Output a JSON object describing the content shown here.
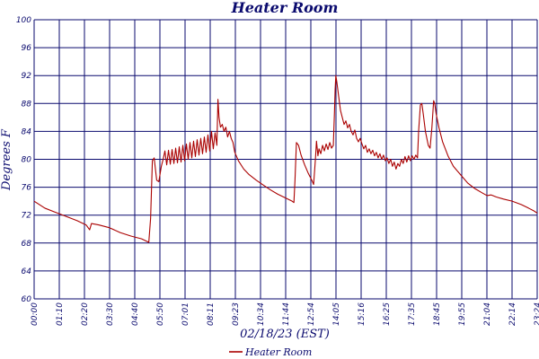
{
  "chart_data": {
    "type": "line",
    "title": "Heater Room",
    "xlabel": "02/18/23 (EST)",
    "ylabel": "Degrees F",
    "ylim": [
      60,
      100
    ],
    "yticks": [
      60,
      64,
      68,
      72,
      76,
      80,
      84,
      88,
      92,
      96,
      100
    ],
    "xlim_minutes": [
      0,
      1404
    ],
    "xticks": [
      "00:00",
      "01:10",
      "02:20",
      "03:30",
      "04:40",
      "05:50",
      "07:01",
      "08:11",
      "09:23",
      "10:34",
      "11:44",
      "12:54",
      "14:05",
      "15:16",
      "16:25",
      "17:35",
      "18:45",
      "19:55",
      "21:04",
      "22:14",
      "23:24"
    ],
    "grid": true,
    "legend_position": "bottom-center",
    "colors": {
      "series": "#aa0000",
      "grid": "#0a0a6e",
      "text": "#0a0a6e"
    },
    "series": [
      {
        "name": "Heater Room",
        "points": [
          [
            "00:00",
            74.0
          ],
          [
            "00:30",
            73.0
          ],
          [
            "01:00",
            72.4
          ],
          [
            "01:30",
            71.8
          ],
          [
            "02:00",
            71.2
          ],
          [
            "02:25",
            70.6
          ],
          [
            "02:35",
            69.9
          ],
          [
            "02:40",
            70.8
          ],
          [
            "03:00",
            70.6
          ],
          [
            "03:30",
            70.2
          ],
          [
            "04:00",
            69.5
          ],
          [
            "04:30",
            69.0
          ],
          [
            "05:00",
            68.6
          ],
          [
            "05:20",
            68.1
          ],
          [
            "05:25",
            71.5
          ],
          [
            "05:30",
            79.8
          ],
          [
            "05:35",
            80.2
          ],
          [
            "05:42",
            77.0
          ],
          [
            "05:48",
            76.8
          ],
          [
            "05:55",
            79.0
          ],
          [
            "06:00",
            80.0
          ],
          [
            "06:05",
            81.2
          ],
          [
            "06:10",
            79.2
          ],
          [
            "06:15",
            81.3
          ],
          [
            "06:20",
            79.3
          ],
          [
            "06:25",
            81.4
          ],
          [
            "06:30",
            79.4
          ],
          [
            "06:35",
            81.6
          ],
          [
            "06:40",
            79.5
          ],
          [
            "06:45",
            81.8
          ],
          [
            "06:50",
            79.6
          ],
          [
            "06:55",
            82.0
          ],
          [
            "07:00",
            79.8
          ],
          [
            "07:05",
            82.2
          ],
          [
            "07:10",
            80.0
          ],
          [
            "07:15",
            82.4
          ],
          [
            "07:20",
            80.2
          ],
          [
            "07:25",
            82.6
          ],
          [
            "07:30",
            80.4
          ],
          [
            "07:35",
            82.8
          ],
          [
            "07:40",
            80.6
          ],
          [
            "07:45",
            83.0
          ],
          [
            "07:50",
            80.8
          ],
          [
            "07:55",
            83.2
          ],
          [
            "08:00",
            81.0
          ],
          [
            "08:05",
            83.5
          ],
          [
            "08:10",
            81.2
          ],
          [
            "08:15",
            84.0
          ],
          [
            "08:20",
            81.5
          ],
          [
            "08:25",
            83.8
          ],
          [
            "08:30",
            82.0
          ],
          [
            "08:33",
            88.6
          ],
          [
            "08:36",
            86.0
          ],
          [
            "08:40",
            84.6
          ],
          [
            "08:45",
            85.0
          ],
          [
            "08:50",
            84.0
          ],
          [
            "08:55",
            84.6
          ],
          [
            "09:00",
            83.2
          ],
          [
            "09:05",
            84.0
          ],
          [
            "09:10",
            83.0
          ],
          [
            "09:15",
            82.4
          ],
          [
            "09:20",
            81.0
          ],
          [
            "09:30",
            79.8
          ],
          [
            "09:45",
            78.6
          ],
          [
            "10:00",
            77.8
          ],
          [
            "10:20",
            77.0
          ],
          [
            "10:40",
            76.3
          ],
          [
            "11:00",
            75.6
          ],
          [
            "11:20",
            75.0
          ],
          [
            "11:40",
            74.5
          ],
          [
            "12:00",
            74.0
          ],
          [
            "12:05",
            73.8
          ],
          [
            "12:08",
            77.0
          ],
          [
            "12:12",
            82.4
          ],
          [
            "12:18",
            82.0
          ],
          [
            "12:25",
            80.6
          ],
          [
            "12:35",
            79.2
          ],
          [
            "12:45",
            78.0
          ],
          [
            "12:55",
            77.0
          ],
          [
            "13:00",
            76.4
          ],
          [
            "13:05",
            80.0
          ],
          [
            "13:08",
            82.6
          ],
          [
            "13:12",
            80.5
          ],
          [
            "13:15",
            81.5
          ],
          [
            "13:20",
            80.8
          ],
          [
            "13:25",
            82.0
          ],
          [
            "13:30",
            81.2
          ],
          [
            "13:35",
            82.2
          ],
          [
            "13:40",
            81.4
          ],
          [
            "13:45",
            82.4
          ],
          [
            "13:50",
            81.6
          ],
          [
            "13:55",
            82.0
          ],
          [
            "13:58",
            86.5
          ],
          [
            "14:00",
            90.0
          ],
          [
            "14:02",
            92.0
          ],
          [
            "14:05",
            91.0
          ],
          [
            "14:10",
            89.0
          ],
          [
            "14:15",
            87.0
          ],
          [
            "14:20",
            86.0
          ],
          [
            "14:25",
            85.0
          ],
          [
            "14:30",
            85.5
          ],
          [
            "14:35",
            84.5
          ],
          [
            "14:40",
            85.0
          ],
          [
            "14:45",
            84.0
          ],
          [
            "14:50",
            83.5
          ],
          [
            "14:55",
            84.2
          ],
          [
            "15:00",
            83.0
          ],
          [
            "15:05",
            82.5
          ],
          [
            "15:10",
            83.0
          ],
          [
            "15:15",
            82.2
          ],
          [
            "15:20",
            81.5
          ],
          [
            "15:25",
            82.0
          ],
          [
            "15:30",
            81.0
          ],
          [
            "15:35",
            81.5
          ],
          [
            "15:40",
            80.8
          ],
          [
            "15:45",
            81.3
          ],
          [
            "15:50",
            80.5
          ],
          [
            "15:55",
            81.0
          ],
          [
            "16:00",
            80.2
          ],
          [
            "16:05",
            80.8
          ],
          [
            "16:10",
            80.0
          ],
          [
            "16:15",
            80.6
          ],
          [
            "16:20",
            79.8
          ],
          [
            "16:25",
            80.2
          ],
          [
            "16:30",
            79.4
          ],
          [
            "16:35",
            80.0
          ],
          [
            "16:40",
            79.0
          ],
          [
            "16:45",
            79.6
          ],
          [
            "16:50",
            78.6
          ],
          [
            "16:55",
            79.4
          ],
          [
            "17:00",
            79.0
          ],
          [
            "17:05",
            80.0
          ],
          [
            "17:10",
            79.4
          ],
          [
            "17:15",
            80.4
          ],
          [
            "17:20",
            79.6
          ],
          [
            "17:25",
            80.5
          ],
          [
            "17:30",
            79.8
          ],
          [
            "17:35",
            80.5
          ],
          [
            "17:40",
            80.0
          ],
          [
            "17:45",
            80.6
          ],
          [
            "17:50",
            80.2
          ],
          [
            "17:53",
            84.0
          ],
          [
            "17:58",
            87.8
          ],
          [
            "18:02",
            88.0
          ],
          [
            "18:06",
            86.5
          ],
          [
            "18:12",
            84.0
          ],
          [
            "18:20",
            82.0
          ],
          [
            "18:25",
            81.6
          ],
          [
            "18:30",
            84.5
          ],
          [
            "18:35",
            88.4
          ],
          [
            "18:38",
            88.0
          ],
          [
            "18:42",
            86.5
          ],
          [
            "18:50",
            84.5
          ],
          [
            "19:00",
            82.5
          ],
          [
            "19:15",
            80.5
          ],
          [
            "19:30",
            79.0
          ],
          [
            "19:50",
            77.8
          ],
          [
            "20:10",
            76.6
          ],
          [
            "20:30",
            75.8
          ],
          [
            "20:50",
            75.2
          ],
          [
            "21:04",
            74.8
          ],
          [
            "21:15",
            74.9
          ],
          [
            "21:30",
            74.6
          ],
          [
            "21:50",
            74.3
          ],
          [
            "22:14",
            74.0
          ],
          [
            "22:40",
            73.5
          ],
          [
            "23:00",
            73.0
          ],
          [
            "23:15",
            72.6
          ],
          [
            "23:24",
            72.3
          ]
        ]
      }
    ]
  }
}
